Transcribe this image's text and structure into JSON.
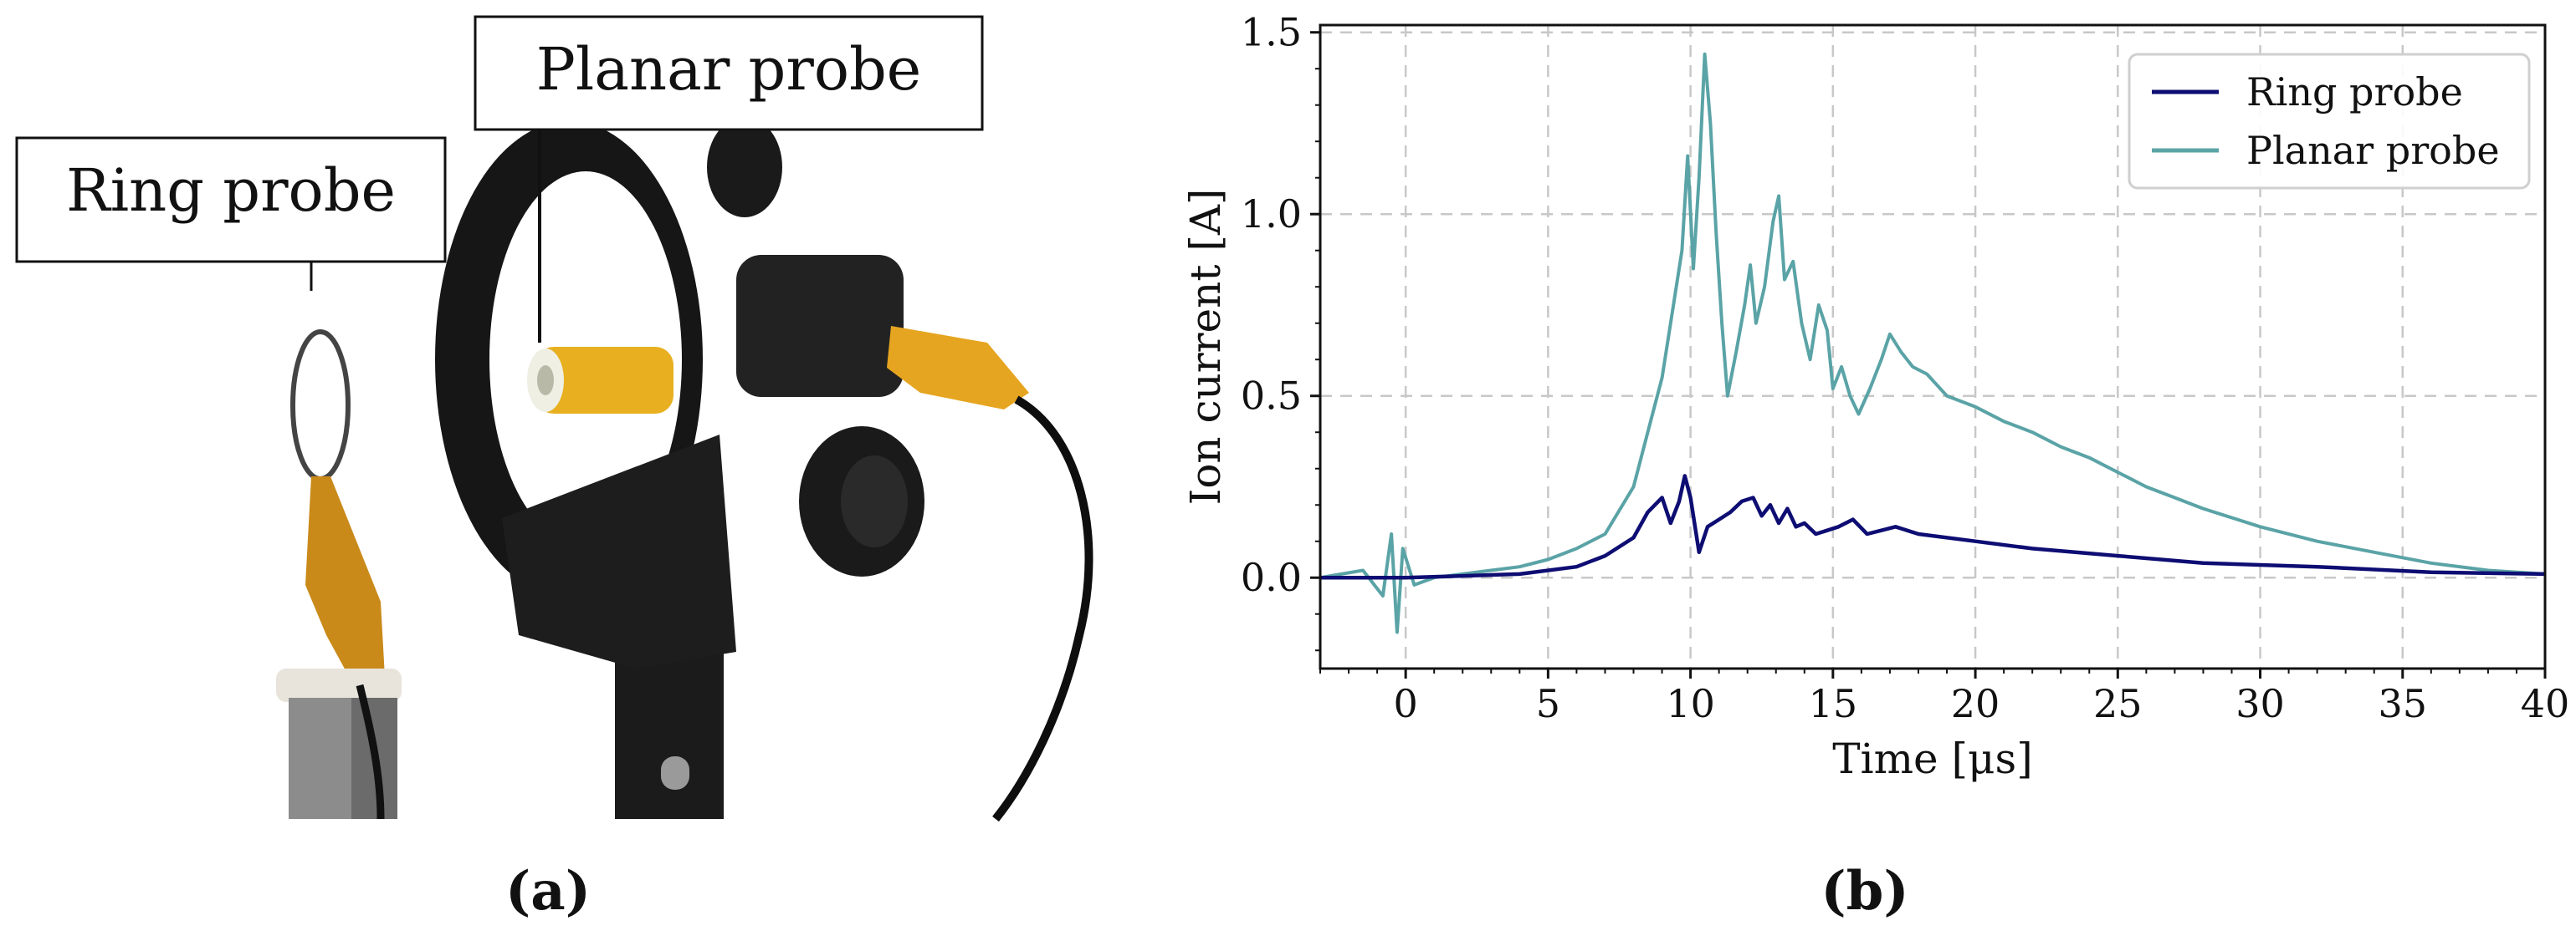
{
  "panel_a": {
    "callout_ring": "Ring probe",
    "callout_planar": "Planar probe",
    "caption": "(a)"
  },
  "panel_b": {
    "caption": "(b)"
  },
  "colors": {
    "ring": "#0d0d73",
    "planar": "#5aa3a6",
    "grid": "#c8c8c8",
    "mount": "#161616",
    "tape": "#e6a520",
    "steel": "#8c8c8c"
  },
  "chart_data": {
    "type": "line",
    "xlabel": "Time [μs]",
    "ylabel": "Ion current [A]",
    "xlim": [
      -3,
      40
    ],
    "ylim": [
      -0.25,
      1.52
    ],
    "xticks": [
      0,
      5,
      10,
      15,
      20,
      25,
      30,
      35,
      40
    ],
    "yticks": [
      0.0,
      0.5,
      1.0,
      1.5
    ],
    "xtick_labels": [
      "0",
      "5",
      "10",
      "15",
      "20",
      "25",
      "30",
      "35",
      "40"
    ],
    "ytick_labels": [
      "0.0",
      "0.5",
      "1.0",
      "1.5"
    ],
    "grid": true,
    "legend_position": "top-right",
    "series": [
      {
        "name": "Ring probe",
        "color": "#0d0d73",
        "x": [
          -3,
          -1,
          0,
          2,
          4,
          6,
          7,
          8,
          8.5,
          9,
          9.3,
          9.6,
          9.8,
          10.0,
          10.3,
          10.6,
          11.0,
          11.4,
          11.8,
          12.2,
          12.5,
          12.8,
          13.1,
          13.4,
          13.7,
          14.0,
          14.4,
          14.8,
          15.2,
          15.7,
          16.2,
          16.7,
          17.2,
          18,
          20,
          22,
          25,
          28,
          32,
          36,
          40
        ],
        "y": [
          0.0,
          0.0,
          0.0,
          0.005,
          0.01,
          0.03,
          0.06,
          0.11,
          0.18,
          0.22,
          0.15,
          0.21,
          0.28,
          0.22,
          0.07,
          0.14,
          0.16,
          0.18,
          0.21,
          0.22,
          0.17,
          0.2,
          0.15,
          0.19,
          0.14,
          0.15,
          0.12,
          0.13,
          0.14,
          0.16,
          0.12,
          0.13,
          0.14,
          0.12,
          0.1,
          0.08,
          0.06,
          0.04,
          0.03,
          0.015,
          0.01
        ]
      },
      {
        "name": "Planar probe",
        "color": "#5aa3a6",
        "x": [
          -3,
          -1.5,
          -0.8,
          -0.5,
          -0.3,
          -0.1,
          0.3,
          1,
          2,
          3,
          4,
          5,
          6,
          7,
          8,
          8.5,
          9,
          9.4,
          9.7,
          9.9,
          10.1,
          10.3,
          10.5,
          10.7,
          10.9,
          11.1,
          11.3,
          11.6,
          11.9,
          12.1,
          12.3,
          12.6,
          12.9,
          13.1,
          13.3,
          13.6,
          13.9,
          14.2,
          14.5,
          14.8,
          15.0,
          15.3,
          15.6,
          15.9,
          16.3,
          16.7,
          17.0,
          17.4,
          17.8,
          18.3,
          19,
          20,
          21,
          22,
          23,
          24,
          25,
          26,
          27,
          28,
          30,
          32,
          34,
          36,
          38,
          40
        ],
        "y": [
          0.0,
          0.02,
          -0.05,
          0.12,
          -0.15,
          0.08,
          -0.02,
          0.0,
          0.01,
          0.02,
          0.03,
          0.05,
          0.08,
          0.12,
          0.25,
          0.4,
          0.55,
          0.75,
          0.9,
          1.16,
          0.85,
          1.1,
          1.44,
          1.25,
          0.95,
          0.7,
          0.5,
          0.62,
          0.75,
          0.86,
          0.7,
          0.8,
          0.98,
          1.05,
          0.82,
          0.87,
          0.7,
          0.6,
          0.75,
          0.68,
          0.52,
          0.58,
          0.5,
          0.45,
          0.52,
          0.6,
          0.67,
          0.62,
          0.58,
          0.56,
          0.5,
          0.47,
          0.43,
          0.4,
          0.36,
          0.33,
          0.29,
          0.25,
          0.22,
          0.19,
          0.14,
          0.1,
          0.07,
          0.04,
          0.02,
          0.01
        ]
      }
    ]
  }
}
